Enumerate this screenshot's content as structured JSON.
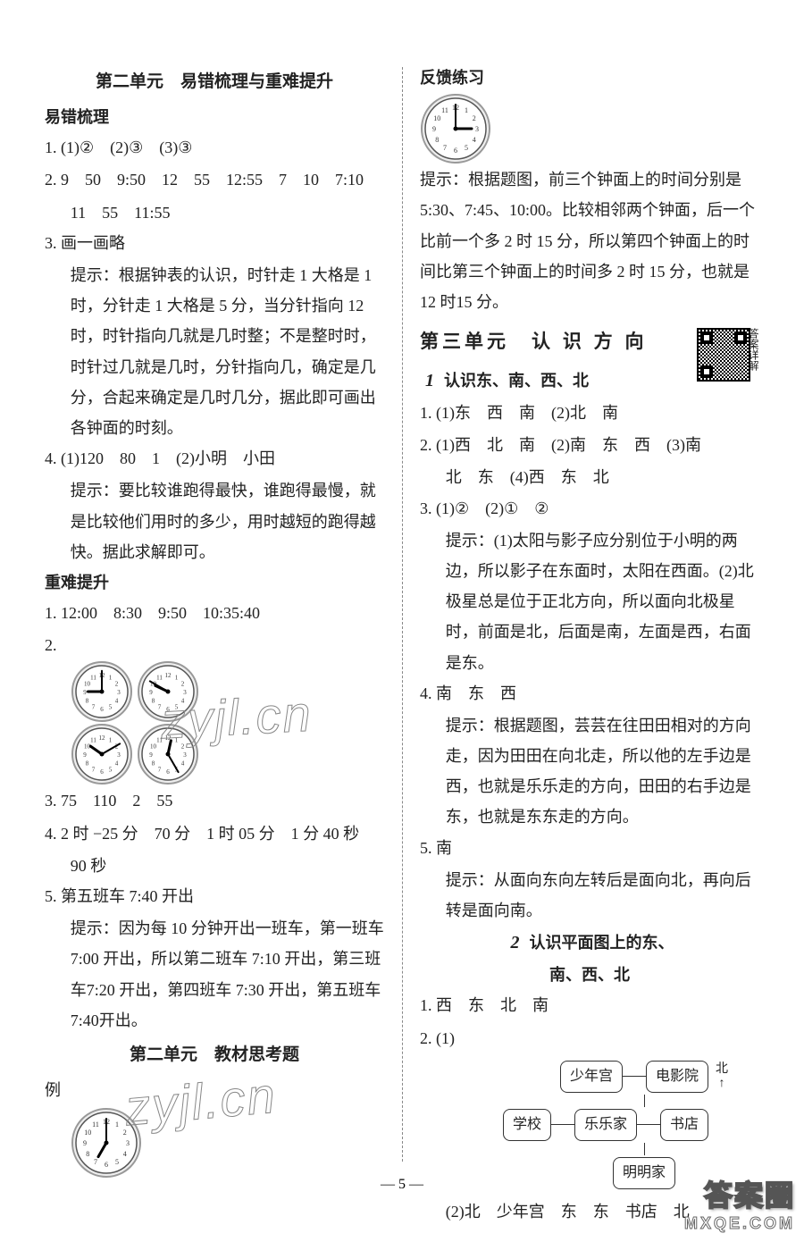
{
  "left": {
    "title1": "第二单元　易错梳理与重难提升",
    "sub_combing": "易错梳理",
    "q1": "1. (1)②　(2)③　(3)③",
    "q2a": "2. 9　50　9:50　12　55　12:55　7　10　7:10",
    "q2b": "11　55　11:55",
    "q3": "3. 画一画略",
    "q3hint": "提示：根据钟表的认识，时针走 1 大格是 1 时，分针走 1 大格是 5 分，当分针指向 12 时，时针指向几就是几时整；不是整时时，时针过几就是几时，分针指向几，确定是几分，合起来确定是几时几分，据此即可画出各钟面的时刻。",
    "q4": "4. (1)120　80　1　(2)小明　小田",
    "q4hint": "提示：要比较谁跑得最快，谁跑得最慢，就是比较他们用时的多少，用时越短的跑得越快。据此求解即可。",
    "sub_hard": "重难提升",
    "h1": "1. 12:00　8:30　9:50　10:35:40",
    "h2": "2.",
    "h3": "3. 75　110　2　55",
    "h4a": "4. 2 时 −25 分　70 分　1 时 05 分　1 分 40 秒",
    "h4b": "90 秒",
    "h5": "5. 第五班车 7:40 开出",
    "h5hint": "提示：因为每 10 分钟开出一班车，第一班车7:00 开出，所以第二班车 7:10 开出，第三班车7:20 开出，第四班车 7:30 开出，第五班车 7:40开出。",
    "title2": "第二单元　教材思考题",
    "example": "例",
    "clocks_h2": [
      {
        "h": 9,
        "m": 0
      },
      {
        "h": 9,
        "m": 50
      },
      {
        "h": 10,
        "m": 10
      },
      {
        "h": 12,
        "m": 25
      }
    ],
    "clock_example": {
      "h": 7,
      "m": 0
    },
    "clock_feedback": {
      "h": 3,
      "m": 0
    }
  },
  "right": {
    "feedback_title": "反馈练习",
    "feedback_hint": "提示：根据题图，前三个钟面上的时间分别是5:30、7:45、10:00。比较相邻两个钟面，后一个比前一个多 2 时 15 分，所以第四个钟面上的时间比第三个钟面上的时间多 2 时 15 分，也就是 12 时15 分。",
    "unit3_title": "第三单元　认 识 方 向",
    "qr_label": "答案详解",
    "lesson1_num": "1",
    "lesson1_title": "认识东、南、西、北",
    "l1_1": "1. (1)东　西　南　(2)北　南",
    "l1_2a": "2. (1)西　北　南　(2)南　东　西　(3)南",
    "l1_2b": "北　东　(4)西　东　北",
    "l1_3": "3. (1)②　(2)①　②",
    "l1_3hint": "提示：(1)太阳与影子应分别位于小明的两边，所以影子在东面时，太阳在西面。(2)北极星总是位于正北方向，所以面向北极星时，前面是北，后面是南，左面是西，右面是东。",
    "l1_4": "4. 南　东　西",
    "l1_4hint": "提示：根据题图，芸芸在往田田相对的方向走，因为田田在向北走，所以他的左手边是西，也就是乐乐走的方向，田田的右手边是东，也就是东东走的方向。",
    "l1_5": "5. 南",
    "l1_5hint": "提示：从面向东向左转后是面向北，再向后转是面向南。",
    "lesson2_num": "2",
    "lesson2_title_a": "认识平面图上的东、",
    "lesson2_title_b": "南、西、北",
    "l2_1": "1. 西　东　北　南",
    "l2_2": "2. (1)",
    "map": {
      "nodes": {
        "palace": "少年宫",
        "cinema": "电影院",
        "school": "学校",
        "home": "乐乐家",
        "bookstore": "书店",
        "mingming": "明明家"
      },
      "north": "北"
    },
    "l2_2b": "(2)北　少年宫　东　东　书店　北"
  },
  "pagenum": "— 5 —",
  "watermark": "zyjl.cn",
  "badge": {
    "top": "答案圈",
    "bot": "MXQE.COM"
  },
  "colors": {
    "text": "#222222",
    "divider": "#888888",
    "clock_stroke": "#555555",
    "node_border": "#333333",
    "bg": "#ffffff"
  }
}
